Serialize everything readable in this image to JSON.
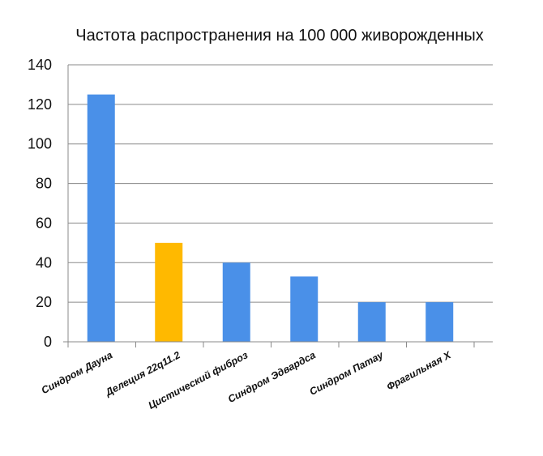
{
  "chart_data": {
    "type": "bar",
    "title": "Частота распространения на 100 000 живорожденных",
    "xlabel": "",
    "ylabel": "",
    "categories": [
      "Синдром Дауна",
      "Делеция 22q11.2",
      "Цистический фиброз",
      "Синдром Эдвардса",
      "Синдром Патау",
      "Фрагильная Х"
    ],
    "values": [
      125,
      50,
      40,
      33,
      20,
      20
    ],
    "bar_colors": [
      "#4a90e8",
      "#ffb900",
      "#4a90e8",
      "#4a90e8",
      "#4a90e8",
      "#4a90e8"
    ],
    "ylim": [
      0,
      140
    ],
    "yticks": [
      0,
      20,
      40,
      60,
      80,
      100,
      120,
      140
    ],
    "grid": true,
    "legend": "none"
  }
}
